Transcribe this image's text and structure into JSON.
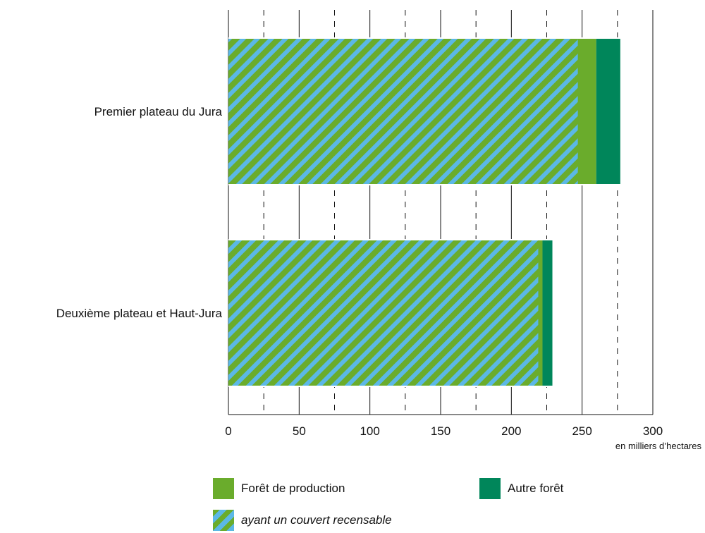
{
  "chart_data": {
    "type": "bar",
    "orientation": "horizontal",
    "stacked": true,
    "categories": [
      "Premier plateau du Jura",
      "Deuxième plateau et Haut-Jura"
    ],
    "series": [
      {
        "name": "Forêt de production",
        "values": [
          260,
          222
        ],
        "color": "#6aac2c"
      },
      {
        "name": "Autre forêt",
        "values": [
          17,
          7
        ],
        "color": "#00865a"
      }
    ],
    "subset": {
      "name": "ayant un couvert recensable",
      "of": "Forêt de production",
      "values": [
        247,
        219
      ],
      "pattern": "diagonal stripes",
      "colors": [
        "#6aac2c",
        "#5bb8e6"
      ]
    },
    "xlim": [
      0,
      300
    ],
    "xticks": [
      "0",
      "50",
      "100",
      "150",
      "200",
      "250",
      "300"
    ],
    "unit_label": "en milliers d’hectares",
    "grid": "solid major every 50, dashed minor every 25",
    "legend_position": "bottom"
  }
}
